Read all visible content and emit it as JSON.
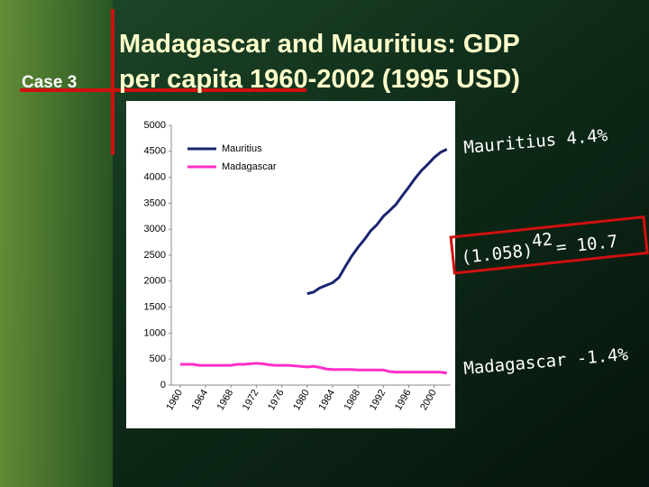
{
  "slide": {
    "case_label": "Case 3",
    "title_lines": [
      "Madagascar and Mauritius: GDP",
      "per capita 1960-2002 (1995 USD)"
    ],
    "annotations": {
      "mauritius_rate": "Mauritius 4.4%",
      "formula_base": "(1.058)",
      "formula_exponent": "42",
      "formula_result": "= 10.7",
      "madagascar_rate": "Madagascar -1.4%"
    }
  },
  "chart_data": {
    "type": "line",
    "x": [
      1960,
      1961,
      1962,
      1963,
      1964,
      1965,
      1966,
      1967,
      1968,
      1969,
      1970,
      1971,
      1972,
      1973,
      1974,
      1975,
      1976,
      1977,
      1978,
      1979,
      1980,
      1981,
      1982,
      1983,
      1984,
      1985,
      1986,
      1987,
      1988,
      1989,
      1990,
      1991,
      1992,
      1993,
      1994,
      1995,
      1996,
      1997,
      1998,
      1999,
      2000,
      2001,
      2002
    ],
    "series": [
      {
        "name": "Mauritius",
        "color": "#1b2470",
        "values": [
          null,
          null,
          null,
          null,
          null,
          null,
          null,
          null,
          null,
          null,
          null,
          null,
          null,
          null,
          null,
          null,
          null,
          null,
          null,
          null,
          1760,
          1790,
          1870,
          1920,
          1970,
          2070,
          2280,
          2480,
          2650,
          2800,
          2970,
          3090,
          3250,
          3360,
          3480,
          3650,
          3810,
          3980,
          4130,
          4250,
          4380,
          4480,
          4540
        ]
      },
      {
        "name": "Madagascar",
        "color": "#ff2ec8",
        "values": [
          400,
          400,
          400,
          380,
          380,
          380,
          380,
          380,
          380,
          400,
          400,
          410,
          420,
          410,
          390,
          380,
          380,
          380,
          370,
          360,
          350,
          360,
          340,
          310,
          300,
          300,
          300,
          300,
          290,
          290,
          290,
          290,
          290,
          260,
          250,
          250,
          250,
          250,
          250,
          250,
          250,
          250,
          230
        ]
      }
    ],
    "xlim": [
      1958.6,
      2002.6
    ],
    "xticks": [
      1960,
      1964,
      1968,
      1972,
      1976,
      1980,
      1984,
      1988,
      1992,
      1996,
      2000
    ],
    "ylim": [
      0,
      5000
    ],
    "yticks": [
      0,
      500,
      1000,
      1500,
      2000,
      2500,
      3000,
      3500,
      4000,
      4500,
      5000
    ],
    "grid": false,
    "legend": "top-left"
  }
}
